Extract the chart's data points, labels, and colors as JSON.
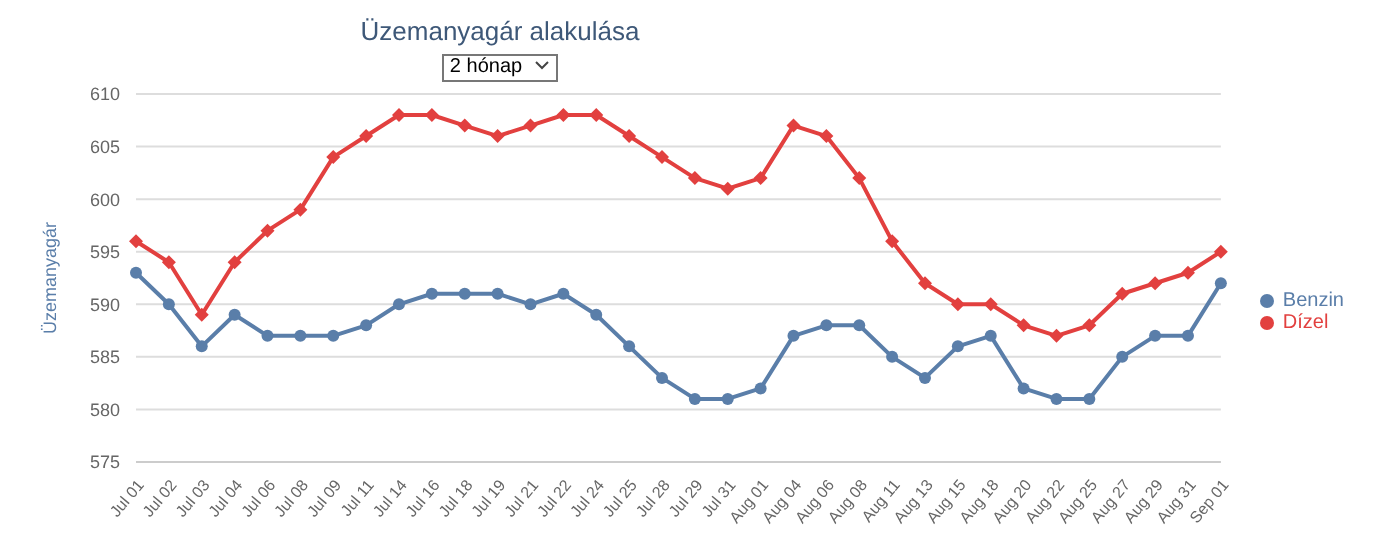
{
  "chart_data": {
    "type": "line",
    "title": "Üzemanyagár alakulása",
    "annotations": [
      "2 hónap"
    ],
    "ylabel": "Üzemanyagár",
    "categories": [
      "Jul 01",
      "Jul 02",
      "Jul 03",
      "Jul 04",
      "Jul 06",
      "Jul 08",
      "Jul 09",
      "Jul 11",
      "Jul 14",
      "Jul 16",
      "Jul 18",
      "Jul 19",
      "Jul 21",
      "Jul 22",
      "Jul 24",
      "Jul 25",
      "Jul 28",
      "Jul 29",
      "Jul 31",
      "Aug 01",
      "Aug 04",
      "Aug 06",
      "Aug 08",
      "Aug 11",
      "Aug 13",
      "Aug 15",
      "Aug 18",
      "Aug 20",
      "Aug 22",
      "Aug 25",
      "Aug 27",
      "Aug 29",
      "Aug 31",
      "Sep 01"
    ],
    "series": [
      {
        "name": "Benzin",
        "color": "#5a7ea9",
        "marker": "circle",
        "values": [
          593,
          590,
          586,
          589,
          587,
          587,
          587,
          588,
          590,
          591,
          591,
          591,
          590,
          591,
          589,
          586,
          583,
          581,
          581,
          582,
          587,
          588,
          588,
          585,
          583,
          586,
          587,
          582,
          581,
          581,
          585,
          587,
          587,
          592
        ]
      },
      {
        "name": "Dízel",
        "color": "#e2403f",
        "marker": "diamond",
        "values": [
          596,
          594,
          589,
          594,
          597,
          599,
          604,
          606,
          608,
          608,
          607,
          606,
          607,
          608,
          608,
          606,
          604,
          602,
          601,
          602,
          607,
          606,
          602,
          596,
          592,
          590,
          590,
          588,
          587,
          588,
          591,
          592,
          593,
          595
        ]
      }
    ],
    "ylim": [
      575,
      610
    ],
    "yticks": [
      575,
      580,
      585,
      590,
      595,
      600,
      605,
      610
    ],
    "grid": "y",
    "legend": "right"
  }
}
